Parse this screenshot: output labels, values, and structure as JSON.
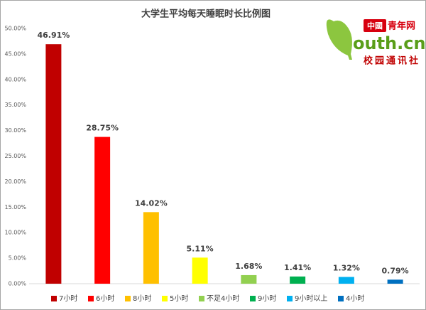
{
  "chart_data": {
    "type": "bar",
    "title": "大学生平均每天睡眠时长比例图",
    "categories": [
      "7小时",
      "6小时",
      "8小时",
      "5小时",
      "不足4小时",
      "9小时",
      "9小时以上",
      "4小时"
    ],
    "values": [
      46.91,
      28.75,
      14.02,
      5.11,
      1.68,
      1.41,
      1.32,
      0.79
    ],
    "value_labels": [
      "46.91%",
      "28.75%",
      "14.02%",
      "5.11%",
      "1.68%",
      "1.41%",
      "1.32%",
      "0.79%"
    ],
    "colors": [
      "#c00000",
      "#ff0000",
      "#ffc000",
      "#ffff00",
      "#92d050",
      "#00b050",
      "#00b0f0",
      "#0070c0"
    ],
    "ylim": [
      0,
      50
    ],
    "yticks": [
      {
        "value": 0,
        "label": "0.00%"
      },
      {
        "value": 5,
        "label": "5.00%"
      },
      {
        "value": 10,
        "label": "10.00%"
      },
      {
        "value": 15,
        "label": "15.00%"
      },
      {
        "value": 20,
        "label": "20.00%"
      },
      {
        "value": 25,
        "label": "25.00%"
      },
      {
        "value": 30,
        "label": "30.00%"
      },
      {
        "value": 35,
        "label": "35.00%"
      },
      {
        "value": 40,
        "label": "40.00%"
      },
      {
        "value": 45,
        "label": "45.00%"
      },
      {
        "value": 50,
        "label": "50.00%"
      }
    ],
    "grid": false,
    "legend": "bottom"
  },
  "logo": {
    "brand": "中國",
    "name": "青年网",
    "domain": "outh.cn",
    "sub": "校园通讯社"
  }
}
